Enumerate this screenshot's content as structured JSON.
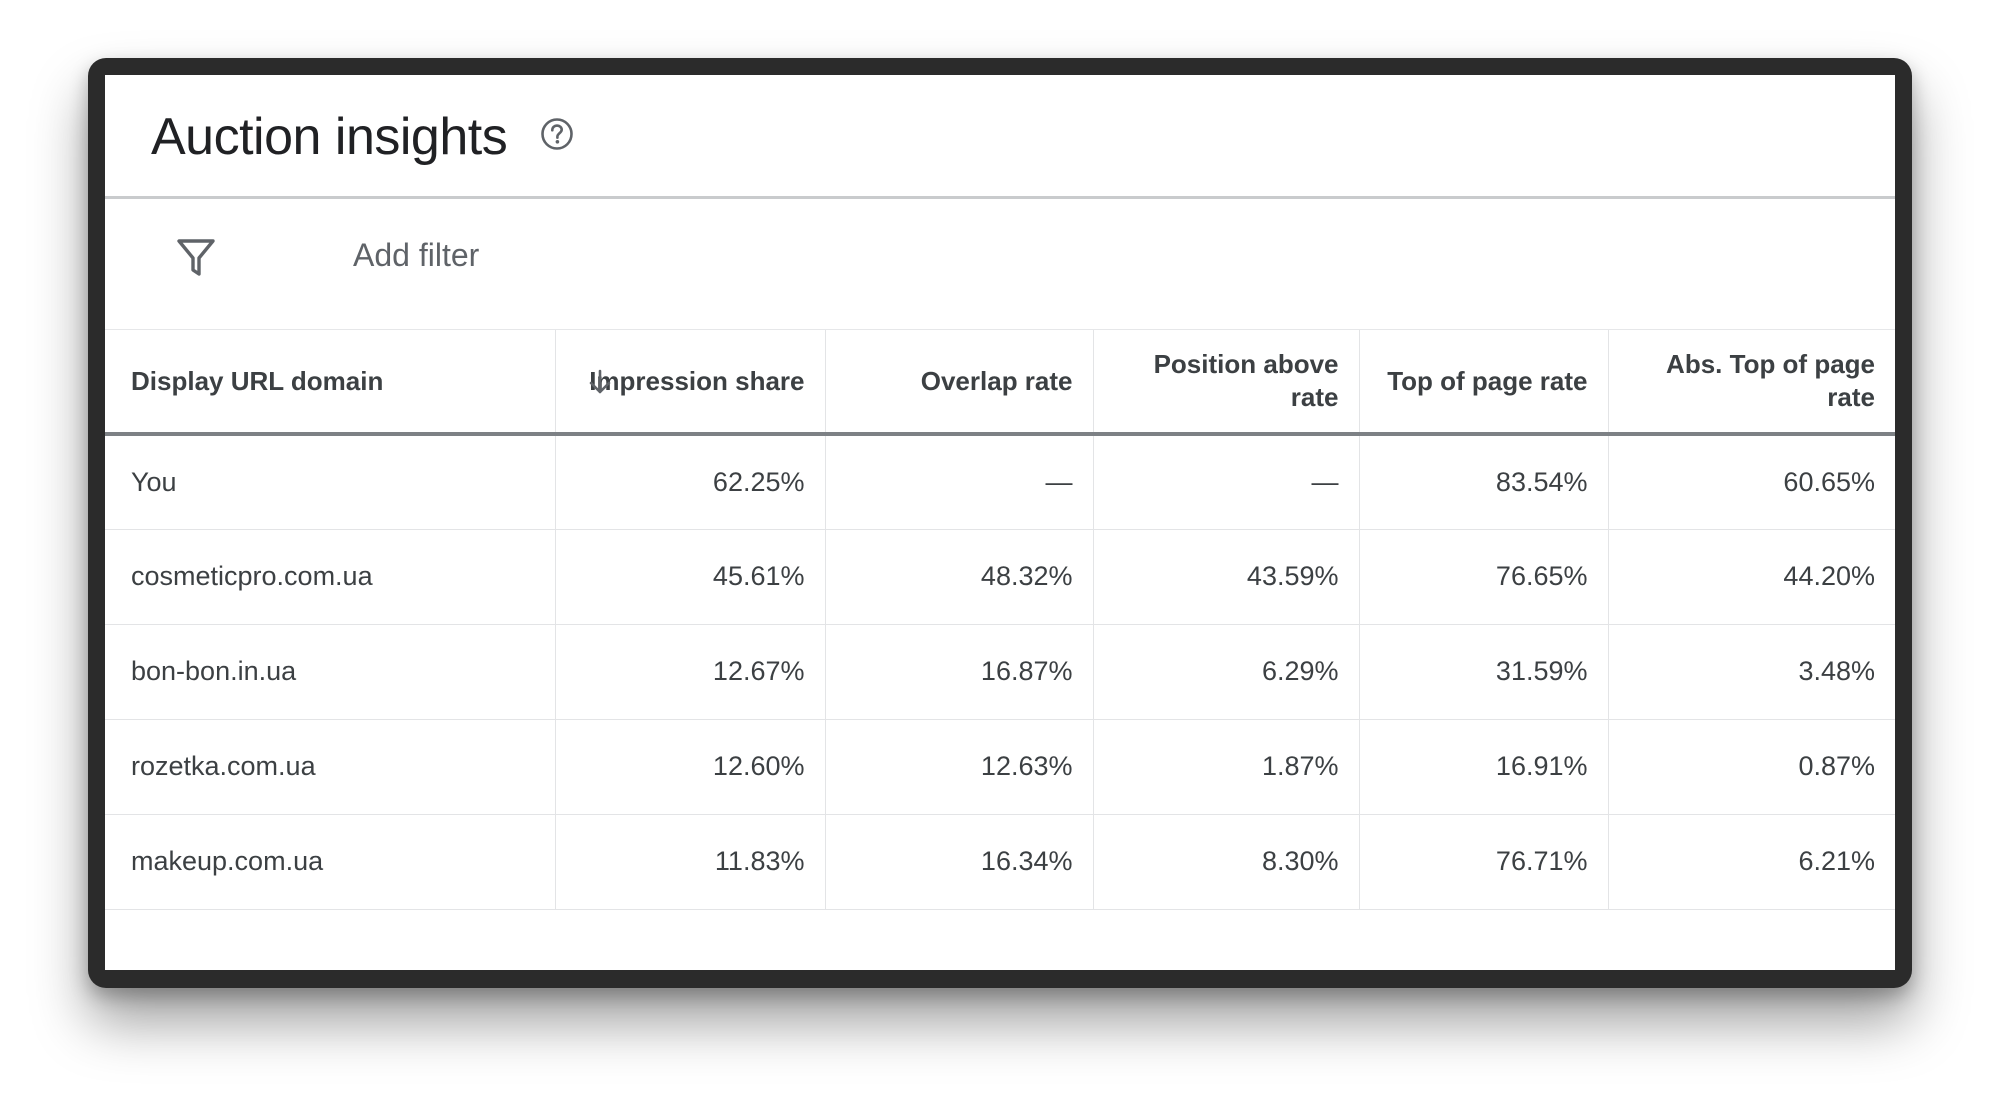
{
  "header": {
    "title": "Auction insights",
    "help_icon": "help-circle-icon"
  },
  "filter_bar": {
    "icon": "filter-funnel-icon",
    "label": "Add filter"
  },
  "table": {
    "columns": [
      {
        "label": "Display URL domain"
      },
      {
        "label": "Impression share",
        "sorted": "descending",
        "sort_icon": "arrow-down-icon"
      },
      {
        "label": "Overlap rate"
      },
      {
        "label": "Position above rate"
      },
      {
        "label": "Top of page rate"
      },
      {
        "label": "Abs. Top of page rate"
      }
    ],
    "rows": [
      [
        "You",
        "62.25%",
        "—",
        "—",
        "83.54%",
        "60.65%"
      ],
      [
        "cosmeticpro.com.ua",
        "45.61%",
        "48.32%",
        "43.59%",
        "76.65%",
        "44.20%"
      ],
      [
        "bon-bon.in.ua",
        "12.67%",
        "16.87%",
        "6.29%",
        "31.59%",
        "3.48%"
      ],
      [
        "rozetka.com.ua",
        "12.60%",
        "12.63%",
        "1.87%",
        "16.91%",
        "0.87%"
      ],
      [
        "makeup.com.ua",
        "11.83%",
        "16.34%",
        "8.30%",
        "76.71%",
        "6.21%"
      ]
    ]
  }
}
